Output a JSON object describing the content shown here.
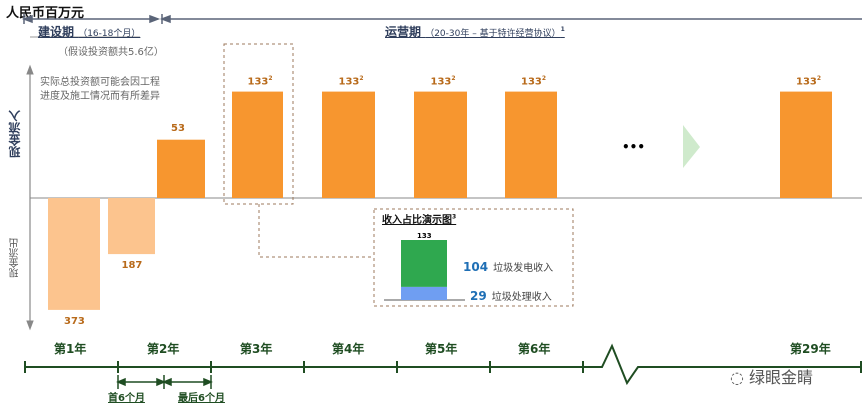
{
  "unit_label": "人民币百万元",
  "phases": {
    "construction": {
      "label": "建设期",
      "duration": "（16-18个月）",
      "note": "（假设投资额共5.6亿）"
    },
    "operation": {
      "label": "运营期",
      "duration": "（20-30年 – 基于特许经营协议）",
      "footnote": "1"
    }
  },
  "investment_note": [
    "实际总投资额可能会因工程",
    "进度及施工情况而有所差异"
  ],
  "axis": {
    "inflow": "现金流入",
    "outflow": "现金流出"
  },
  "chart_data": {
    "type": "bar",
    "title": "人民币百万元",
    "categories": [
      "第1年（首6个月）",
      "第1年（后期）",
      "第2年",
      "第3年",
      "第4年",
      "第5年",
      "第6年",
      "第29年"
    ],
    "values": [
      -373,
      -187,
      53,
      133,
      133,
      133,
      133,
      133
    ],
    "labels": [
      "373",
      "187",
      "53",
      "133",
      "133",
      "133",
      "133",
      "133"
    ],
    "label_footnotes": [
      "",
      "",
      "",
      "2",
      "2",
      "2",
      "2",
      "2"
    ],
    "colors": {
      "outflow": "#fcc48e",
      "inflow": "#f7962f"
    },
    "ellipsis": "•••"
  },
  "inset": {
    "title": "收入占比演示图",
    "footnote": "3",
    "total": "133",
    "segments": [
      {
        "name": "垃圾发电收入",
        "value": 104,
        "color": "#2fa84f"
      },
      {
        "name": "垃圾处理收入",
        "value": 29,
        "color": "#6f9ef2"
      }
    ]
  },
  "timeline": {
    "years": [
      "第1年",
      "第2年",
      "第3年",
      "第4年",
      "第5年",
      "第6年",
      "第29年"
    ],
    "sub_periods": [
      "首6个月",
      "最后6个月"
    ]
  },
  "watermark": "绿眼金睛"
}
